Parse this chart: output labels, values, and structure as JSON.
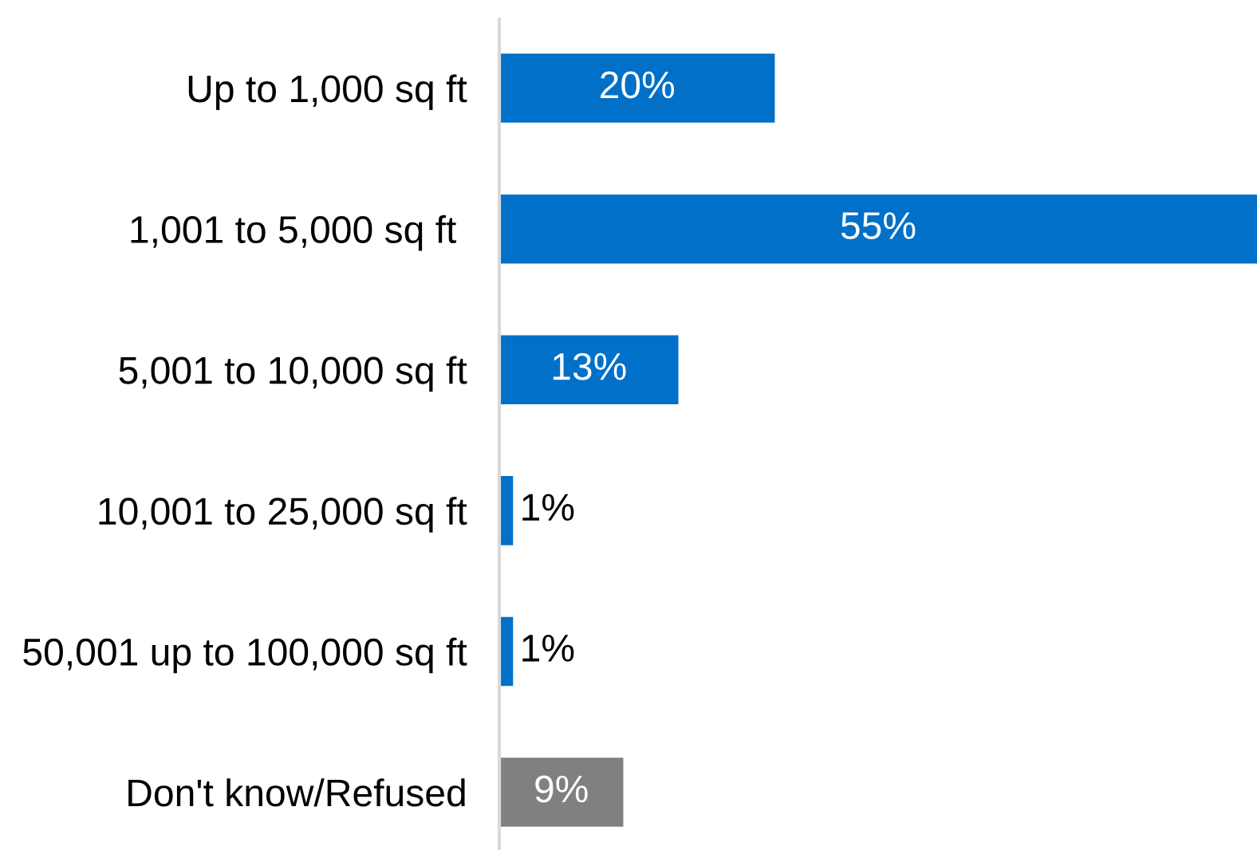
{
  "chart_data": {
    "type": "bar",
    "orientation": "horizontal",
    "categories": [
      "Up to 1,000 sq ft",
      "1,001 to 5,000 sq ft ",
      "5,001 to 10,000 sq ft",
      "10,001 to 25,000 sq ft",
      "50,001 up to 100,000 sq ft",
      "Don't know/Refused"
    ],
    "values": [
      20,
      55,
      13,
      1,
      1,
      9
    ],
    "colors": [
      "#0070c8",
      "#0070c8",
      "#0070c8",
      "#0070c8",
      "#0070c8",
      "#808080"
    ],
    "value_labels": [
      "20%",
      "55%",
      "13%",
      "1%",
      "1%",
      "9%"
    ]
  }
}
